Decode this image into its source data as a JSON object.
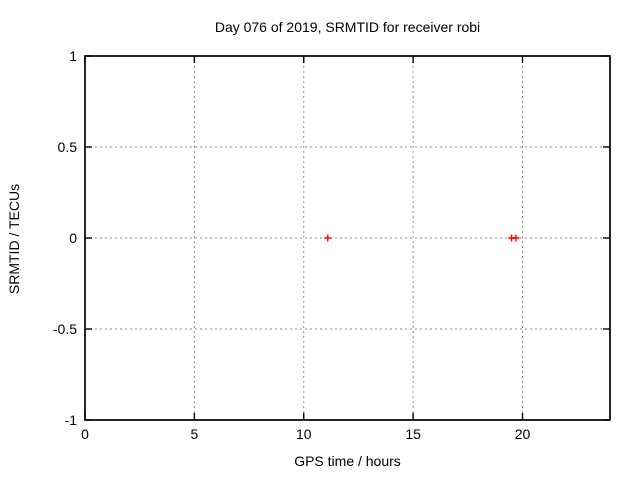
{
  "chart_data": {
    "type": "scatter",
    "title": "Day 076 of 2019, SRMTID for receiver robi",
    "xlabel": "GPS time / hours",
    "ylabel": "SRMTID / TECUs",
    "xlim": [
      0,
      24
    ],
    "ylim": [
      -1,
      1
    ],
    "xticks": [
      {
        "v": 0,
        "label": "0"
      },
      {
        "v": 5,
        "label": "5"
      },
      {
        "v": 10,
        "label": "10"
      },
      {
        "v": 15,
        "label": "15"
      },
      {
        "v": 20,
        "label": "20"
      }
    ],
    "yticks": [
      {
        "v": 1,
        "label": "1"
      },
      {
        "v": 0.5,
        "label": "0.5"
      },
      {
        "v": 0,
        "label": "0"
      },
      {
        "v": -0.5,
        "label": "-0.5"
      },
      {
        "v": -1,
        "label": "-1"
      }
    ],
    "grid_x": [
      5,
      10,
      15,
      20
    ],
    "grid_y": [
      0.5,
      0,
      -0.5
    ],
    "grid": true,
    "legend": "none",
    "series": [
      {
        "name": "SRMTID",
        "marker": "plus",
        "color": "#ff0000",
        "points": [
          [
            11.1,
            0
          ],
          [
            19.5,
            0
          ],
          [
            19.7,
            0
          ]
        ]
      }
    ]
  },
  "colors": {
    "background": "#ffffff",
    "border": "#000000",
    "grid": "#8c8c8c",
    "text": "#000000",
    "marker": "#ff0000"
  }
}
